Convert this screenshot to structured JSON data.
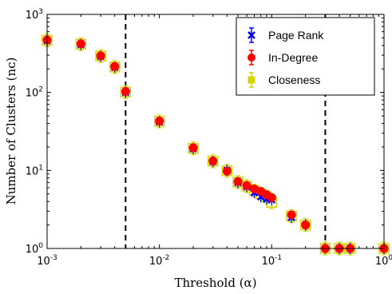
{
  "chart_data": {
    "type": "scatter",
    "xlabel": "Threshold (α)",
    "ylabel": "Number of Clusters (nᴄ)",
    "xscale": "log",
    "yscale": "log",
    "xlim": [
      0.001,
      1
    ],
    "ylim": [
      1,
      1000
    ],
    "grid": false,
    "legend_position": "top-right",
    "x_ticks": [
      {
        "value": 0.001,
        "base": "10",
        "exp": "-3"
      },
      {
        "value": 0.01,
        "base": "10",
        "exp": "-2"
      },
      {
        "value": 0.1,
        "base": "10",
        "exp": "-1"
      },
      {
        "value": 1,
        "base": "10",
        "exp": "0"
      }
    ],
    "y_ticks": [
      {
        "value": 1,
        "base": "10",
        "exp": "0"
      },
      {
        "value": 10,
        "base": "10",
        "exp": "1"
      },
      {
        "value": 100,
        "base": "10",
        "exp": "2"
      },
      {
        "value": 1000,
        "base": "10",
        "exp": "3"
      }
    ],
    "vertical_lines": [
      0.005,
      0.3
    ],
    "series": [
      {
        "name": "Page Rank",
        "color": "#0000ff",
        "marker": "x",
        "points": [
          [
            0.001,
            460
          ],
          [
            0.002,
            410
          ],
          [
            0.003,
            290
          ],
          [
            0.004,
            210
          ],
          [
            0.005,
            100
          ],
          [
            0.01,
            42
          ],
          [
            0.02,
            19
          ],
          [
            0.03,
            13
          ],
          [
            0.04,
            10
          ],
          [
            0.05,
            7
          ],
          [
            0.06,
            6.2
          ],
          [
            0.07,
            5.2
          ],
          [
            0.08,
            4.6
          ],
          [
            0.09,
            4.3
          ],
          [
            0.1,
            4.2
          ],
          [
            0.15,
            2.5
          ],
          [
            0.2,
            2
          ],
          [
            0.3,
            1
          ],
          [
            0.4,
            1
          ],
          [
            0.5,
            1
          ],
          [
            1,
            1
          ]
        ]
      },
      {
        "name": "In-Degree",
        "color": "#ff0000",
        "marker": "circle",
        "points": [
          [
            0.001,
            470
          ],
          [
            0.002,
            420
          ],
          [
            0.003,
            295
          ],
          [
            0.004,
            215
          ],
          [
            0.005,
            103
          ],
          [
            0.01,
            43
          ],
          [
            0.02,
            19.5
          ],
          [
            0.03,
            13.2
          ],
          [
            0.04,
            9.8
          ],
          [
            0.05,
            7.2
          ],
          [
            0.06,
            6.4
          ],
          [
            0.07,
            5.8
          ],
          [
            0.08,
            5.4
          ],
          [
            0.09,
            4.9
          ],
          [
            0.1,
            4.5
          ],
          [
            0.15,
            2.7
          ],
          [
            0.2,
            2
          ],
          [
            0.3,
            1
          ],
          [
            0.4,
            1
          ],
          [
            0.5,
            1
          ],
          [
            1,
            1
          ]
        ]
      },
      {
        "name": "Closeness",
        "color": "#d4d400",
        "marker": "square",
        "points": [
          [
            0.001,
            465
          ],
          [
            0.002,
            415
          ],
          [
            0.003,
            292
          ],
          [
            0.004,
            212
          ],
          [
            0.005,
            101
          ],
          [
            0.01,
            42.5
          ],
          [
            0.02,
            19.2
          ],
          [
            0.03,
            13.1
          ],
          [
            0.04,
            9.9
          ],
          [
            0.05,
            7.1
          ],
          [
            0.06,
            6.3
          ],
          [
            0.07,
            5.5
          ],
          [
            0.08,
            5.0
          ],
          [
            0.09,
            4.6
          ],
          [
            0.1,
            3.9
          ],
          [
            0.15,
            2.6
          ],
          [
            0.2,
            2
          ],
          [
            0.3,
            1
          ],
          [
            0.4,
            1
          ],
          [
            0.5,
            1
          ],
          [
            1,
            1
          ]
        ]
      }
    ]
  }
}
